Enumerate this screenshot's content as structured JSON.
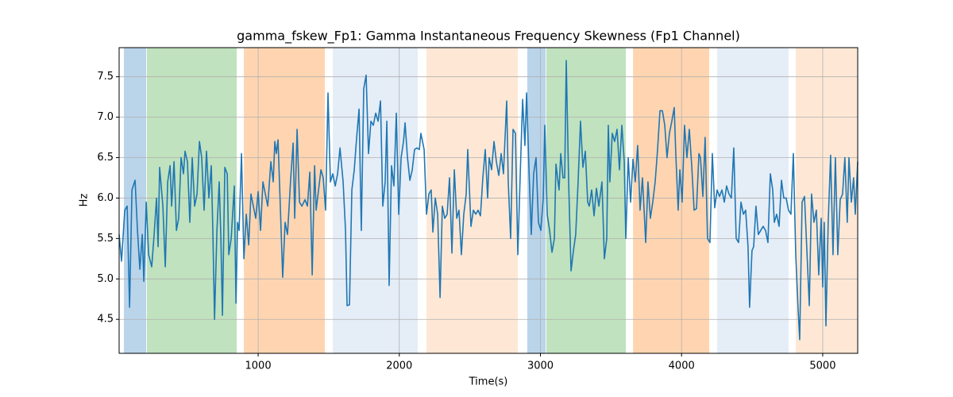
{
  "chart_data": {
    "type": "line",
    "title": "gamma_fskew_Fp1: Gamma Instantaneous Frequency Skewness (Fp1 Channel)",
    "x_label": "Time(s)",
    "y_label": "Hz",
    "xlim": [
      15,
      5248
    ],
    "ylim": [
      4.08,
      7.86
    ],
    "xticks": [
      1000,
      2000,
      3000,
      4000,
      5000
    ],
    "yticks": [
      4.5,
      {
        "value": 5,
        "label": "5.0"
      },
      5.5,
      {
        "value": 6,
        "label": "6.0"
      },
      6.5,
      {
        "value": 7,
        "label": "7.0"
      },
      7.5
    ],
    "grid": true,
    "spans": [
      {
        "start": 49,
        "end": 207,
        "color": "#bad4ea"
      },
      {
        "start": 212,
        "end": 848,
        "color": "#c0e2be"
      },
      {
        "start": 899,
        "end": 1473,
        "color": "#ffd5b1"
      },
      {
        "start": 1529,
        "end": 2131,
        "color": "#e5edf7"
      },
      {
        "start": 2193,
        "end": 2840,
        "color": "#fee8d5"
      },
      {
        "start": 2907,
        "end": 3037,
        "color": "#bad4ea"
      },
      {
        "start": 3042,
        "end": 3605,
        "color": "#c0e2be"
      },
      {
        "start": 3656,
        "end": 4196,
        "color": "#ffd5b1"
      },
      {
        "start": 4252,
        "end": 4758,
        "color": "#e5edf7"
      },
      {
        "start": 4809,
        "end": 5248,
        "color": "#fee8d5"
      }
    ],
    "series": [
      {
        "color": "#1f77b4",
        "x": [
          15,
          32,
          55,
          72,
          89,
          106,
          128,
          145,
          162,
          179,
          190,
          207,
          224,
          246,
          263,
          280,
          291,
          302,
          325,
          342,
          359,
          376,
          387,
          404,
          421,
          437,
          454,
          471,
          482,
          499,
          516,
          533,
          550,
          567,
          584,
          600,
          617,
          634,
          651,
          668,
          679,
          691,
          708,
          724,
          736,
          747,
          764,
          781,
          792,
          809,
          831,
          843,
          854,
          865,
          882,
          899,
          916,
          933,
          949,
          966,
          983,
          1000,
          1017,
          1034,
          1051,
          1068,
          1090,
          1107,
          1118,
          1129,
          1141,
          1158,
          1174,
          1191,
          1208,
          1231,
          1248,
          1259,
          1276,
          1293,
          1310,
          1332,
          1349,
          1366,
          1383,
          1400,
          1411,
          1428,
          1445,
          1461,
          1478,
          1495,
          1512,
          1529,
          1546,
          1563,
          1580,
          1602,
          1619,
          1630,
          1647,
          1664,
          1681,
          1698,
          1715,
          1731,
          1748,
          1765,
          1782,
          1799,
          1816,
          1833,
          1850,
          1867,
          1883,
          1900,
          1912,
          1928,
          1945,
          1962,
          1979,
          1996,
          2013,
          2030,
          2041,
          2058,
          2075,
          2092,
          2108,
          2125,
          2142,
          2153,
          2176,
          2193,
          2210,
          2226,
          2238,
          2255,
          2272,
          2289,
          2305,
          2322,
          2339,
          2356,
          2373,
          2390,
          2407,
          2423,
          2440,
          2457,
          2474,
          2485,
          2508,
          2525,
          2542,
          2558,
          2575,
          2592,
          2609,
          2626,
          2637,
          2654,
          2671,
          2688,
          2705,
          2722,
          2738,
          2761,
          2772,
          2789,
          2806,
          2823,
          2840,
          2857,
          2874,
          2890,
          2902,
          2918,
          2935,
          2952,
          2969,
          2986,
          3003,
          3020,
          3031,
          3048,
          3065,
          3082,
          3099,
          3110,
          3132,
          3144,
          3160,
          3172,
          3183,
          3200,
          3217,
          3234,
          3250,
          3267,
          3284,
          3301,
          3318,
          3335,
          3346,
          3363,
          3380,
          3397,
          3414,
          3436,
          3453,
          3470,
          3481,
          3492,
          3509,
          3526,
          3543,
          3560,
          3577,
          3594,
          3605,
          3622,
          3639,
          3656,
          3672,
          3689,
          3706,
          3723,
          3746,
          3762,
          3779,
          3796,
          3813,
          3830,
          3847,
          3864,
          3881,
          3897,
          3914,
          3931,
          3948,
          3959,
          3976,
          3988,
          4004,
          4021,
          4038,
          4055,
          4072,
          4089,
          4106,
          4123,
          4134,
          4151,
          4167,
          4184,
          4201,
          4218,
          4235,
          4252,
          4269,
          4286,
          4303,
          4319,
          4336,
          4353,
          4370,
          4387,
          4404,
          4421,
          4438,
          4454,
          4471,
          4482,
          4499,
          4511,
          4527,
          4544,
          4561,
          4578,
          4595,
          4612,
          4629,
          4646,
          4657,
          4674,
          4691,
          4708,
          4724,
          4741,
          4758,
          4775,
          4792,
          4809,
          4826,
          4837,
          4854,
          4871,
          4888,
          4905,
          4921,
          4938,
          4955,
          4972,
          4989,
          5000,
          5011,
          5023,
          5039,
          5056,
          5073,
          5090,
          5107,
          5124,
          5141,
          5157,
          5174,
          5186,
          5203,
          5219,
          5231,
          5248
        ],
        "values": [
          5.55,
          5.22,
          5.85,
          5.9,
          4.65,
          6.1,
          6.22,
          5.6,
          5.12,
          5.55,
          4.97,
          5.95,
          5.3,
          5.15,
          5.55,
          6.0,
          5.4,
          6.38,
          5.9,
          5.15,
          6.2,
          6.4,
          5.9,
          6.45,
          5.6,
          5.75,
          6.5,
          6.3,
          6.58,
          6.45,
          5.7,
          6.5,
          5.9,
          6.05,
          6.7,
          6.5,
          5.85,
          6.58,
          6.0,
          6.4,
          5.6,
          4.5,
          5.6,
          6.2,
          5.5,
          4.55,
          6.38,
          6.3,
          5.3,
          5.5,
          6.15,
          4.7,
          5.7,
          5.6,
          6.55,
          5.25,
          5.8,
          5.42,
          6.05,
          5.9,
          5.75,
          6.08,
          5.6,
          6.2,
          6.05,
          5.9,
          6.45,
          6.2,
          6.7,
          6.55,
          6.72,
          5.85,
          5.02,
          5.7,
          5.55,
          6.25,
          6.68,
          5.75,
          6.85,
          5.95,
          5.9,
          5.98,
          5.9,
          6.32,
          5.05,
          6.4,
          5.85,
          6.1,
          6.35,
          6.25,
          5.85,
          7.3,
          6.2,
          6.3,
          6.15,
          6.3,
          6.62,
          6.2,
          5.6,
          4.67,
          4.68,
          6.1,
          6.35,
          6.75,
          7.1,
          5.6,
          7.35,
          7.52,
          6.55,
          6.95,
          6.9,
          7.05,
          6.95,
          7.2,
          5.9,
          6.2,
          6.95,
          4.92,
          6.4,
          6.15,
          7.05,
          5.8,
          6.5,
          6.7,
          6.93,
          6.5,
          6.22,
          6.35,
          6.6,
          6.62,
          6.6,
          6.8,
          6.6,
          5.8,
          6.05,
          6.1,
          5.58,
          6.0,
          5.8,
          4.77,
          5.9,
          5.75,
          5.8,
          6.25,
          5.32,
          6.35,
          5.75,
          5.85,
          5.3,
          5.8,
          6.05,
          6.6,
          5.65,
          5.85,
          5.8,
          5.85,
          5.78,
          6.25,
          6.6,
          6.0,
          6.5,
          6.35,
          6.7,
          6.45,
          6.28,
          6.55,
          6.3,
          7.2,
          6.2,
          5.5,
          6.85,
          6.8,
          5.3,
          6.3,
          7.22,
          6.65,
          7.3,
          6.4,
          5.55,
          6.3,
          6.5,
          5.7,
          5.6,
          6.0,
          6.9,
          5.8,
          5.6,
          5.33,
          5.5,
          6.42,
          6.1,
          6.55,
          6.25,
          6.25,
          7.7,
          6.2,
          5.1,
          5.35,
          5.55,
          6.2,
          6.95,
          6.38,
          6.58,
          5.95,
          5.9,
          6.1,
          5.78,
          6.12,
          5.9,
          6.2,
          5.25,
          5.5,
          6.9,
          6.2,
          6.8,
          6.7,
          6.85,
          6.35,
          6.9,
          6.45,
          5.5,
          6.5,
          5.95,
          6.48,
          6.2,
          6.65,
          5.85,
          6.25,
          5.45,
          6.2,
          5.75,
          5.95,
          6.2,
          6.6,
          7.08,
          7.08,
          6.9,
          6.5,
          6.8,
          6.95,
          7.12,
          6.55,
          5.85,
          6.35,
          5.95,
          6.9,
          6.5,
          6.85,
          6.4,
          5.85,
          5.87,
          6.55,
          6.5,
          6.02,
          6.75,
          5.5,
          5.45,
          6.55,
          5.88,
          6.1,
          6.02,
          6.1,
          5.95,
          6.15,
          6.05,
          6.0,
          6.62,
          5.5,
          5.45,
          5.95,
          5.8,
          5.85,
          5.4,
          4.65,
          5.35,
          5.4,
          5.9,
          5.55,
          5.6,
          5.65,
          5.6,
          5.45,
          6.3,
          6.1,
          5.7,
          5.8,
          5.65,
          6.22,
          6.0,
          6.0,
          5.85,
          5.8,
          6.55,
          5.3,
          4.62,
          4.25,
          5.95,
          6.02,
          5.35,
          4.67,
          6.05,
          5.7,
          5.85,
          5.05,
          5.75,
          4.9,
          5.7,
          4.42,
          5.7,
          6.53,
          5.3,
          6.5,
          5.3,
          5.98,
          6.05,
          6.5,
          5.7,
          6.5,
          5.95,
          6.25,
          5.8,
          6.45
        ]
      }
    ]
  }
}
